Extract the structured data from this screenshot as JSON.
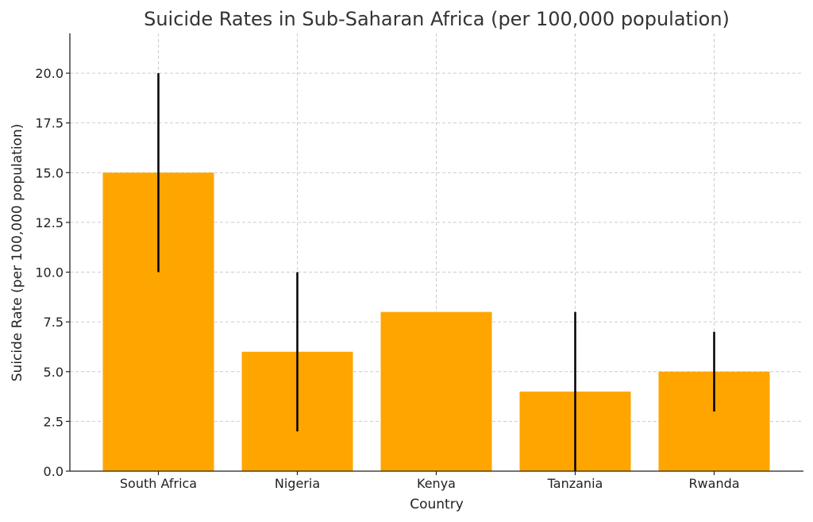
{
  "chart_data": {
    "type": "bar",
    "title": "Suicide Rates in Sub-Saharan Africa (per 100,000 population)",
    "xlabel": "Country",
    "ylabel": "Suicide Rate (per 100,000 population)",
    "categories": [
      "South Africa",
      "Nigeria",
      "Kenya",
      "Tanzania",
      "Rwanda"
    ],
    "values": [
      15,
      6,
      8,
      4,
      5
    ],
    "error_bars": [
      {
        "low": 10,
        "high": 20
      },
      {
        "low": 2,
        "high": 10
      },
      {
        "low": 8,
        "high": 8
      },
      {
        "low": 0,
        "high": 8
      },
      {
        "low": 3,
        "high": 7
      }
    ],
    "ylim": [
      0,
      22
    ],
    "yticks": [
      0,
      2.5,
      5,
      7.5,
      10,
      12.5,
      15,
      17.5,
      20
    ],
    "ytick_labels": [
      "0.0",
      "2.5",
      "5.0",
      "7.5",
      "10.0",
      "12.5",
      "15.0",
      "17.5",
      "20.0"
    ],
    "grid": true,
    "bar_color": "#FFA500",
    "error_color": "#000000"
  }
}
